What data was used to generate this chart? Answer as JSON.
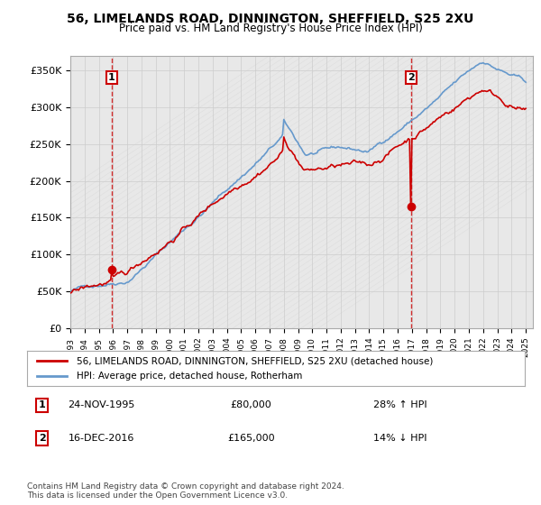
{
  "title_line1": "56, LIMELANDS ROAD, DINNINGTON, SHEFFIELD, S25 2XU",
  "title_line2": "Price paid vs. HM Land Registry's House Price Index (HPI)",
  "ylabel": "",
  "xlabel": "",
  "ylim": [
    0,
    370000
  ],
  "yticks": [
    0,
    50000,
    100000,
    150000,
    200000,
    250000,
    300000,
    350000
  ],
  "ytick_labels": [
    "£0",
    "£50K",
    "£100K",
    "£150K",
    "£200K",
    "£250K",
    "£300K",
    "£350K"
  ],
  "legend_line1": "56, LIMELANDS ROAD, DINNINGTON, SHEFFIELD, S25 2XU (detached house)",
  "legend_line2": "HPI: Average price, detached house, Rotherham",
  "purchase1_label": "1",
  "purchase1_date": "24-NOV-1995",
  "purchase1_price": "£80,000",
  "purchase1_hpi": "28% ↑ HPI",
  "purchase2_label": "2",
  "purchase2_date": "16-DEC-2016",
  "purchase2_price": "£165,000",
  "purchase2_hpi": "14% ↓ HPI",
  "copyright_text": "Contains HM Land Registry data © Crown copyright and database right 2024.\nThis data is licensed under the Open Government Licence v3.0.",
  "red_color": "#cc0000",
  "blue_color": "#6699cc",
  "marker1_year": 1995.9,
  "marker1_value": 80000,
  "marker2_year": 2016.95,
  "marker2_value": 165000,
  "vline1_year": 1995.9,
  "vline2_year": 2016.95,
  "background_color": "#ffffff",
  "plot_bg_color": "#f0f0f0"
}
